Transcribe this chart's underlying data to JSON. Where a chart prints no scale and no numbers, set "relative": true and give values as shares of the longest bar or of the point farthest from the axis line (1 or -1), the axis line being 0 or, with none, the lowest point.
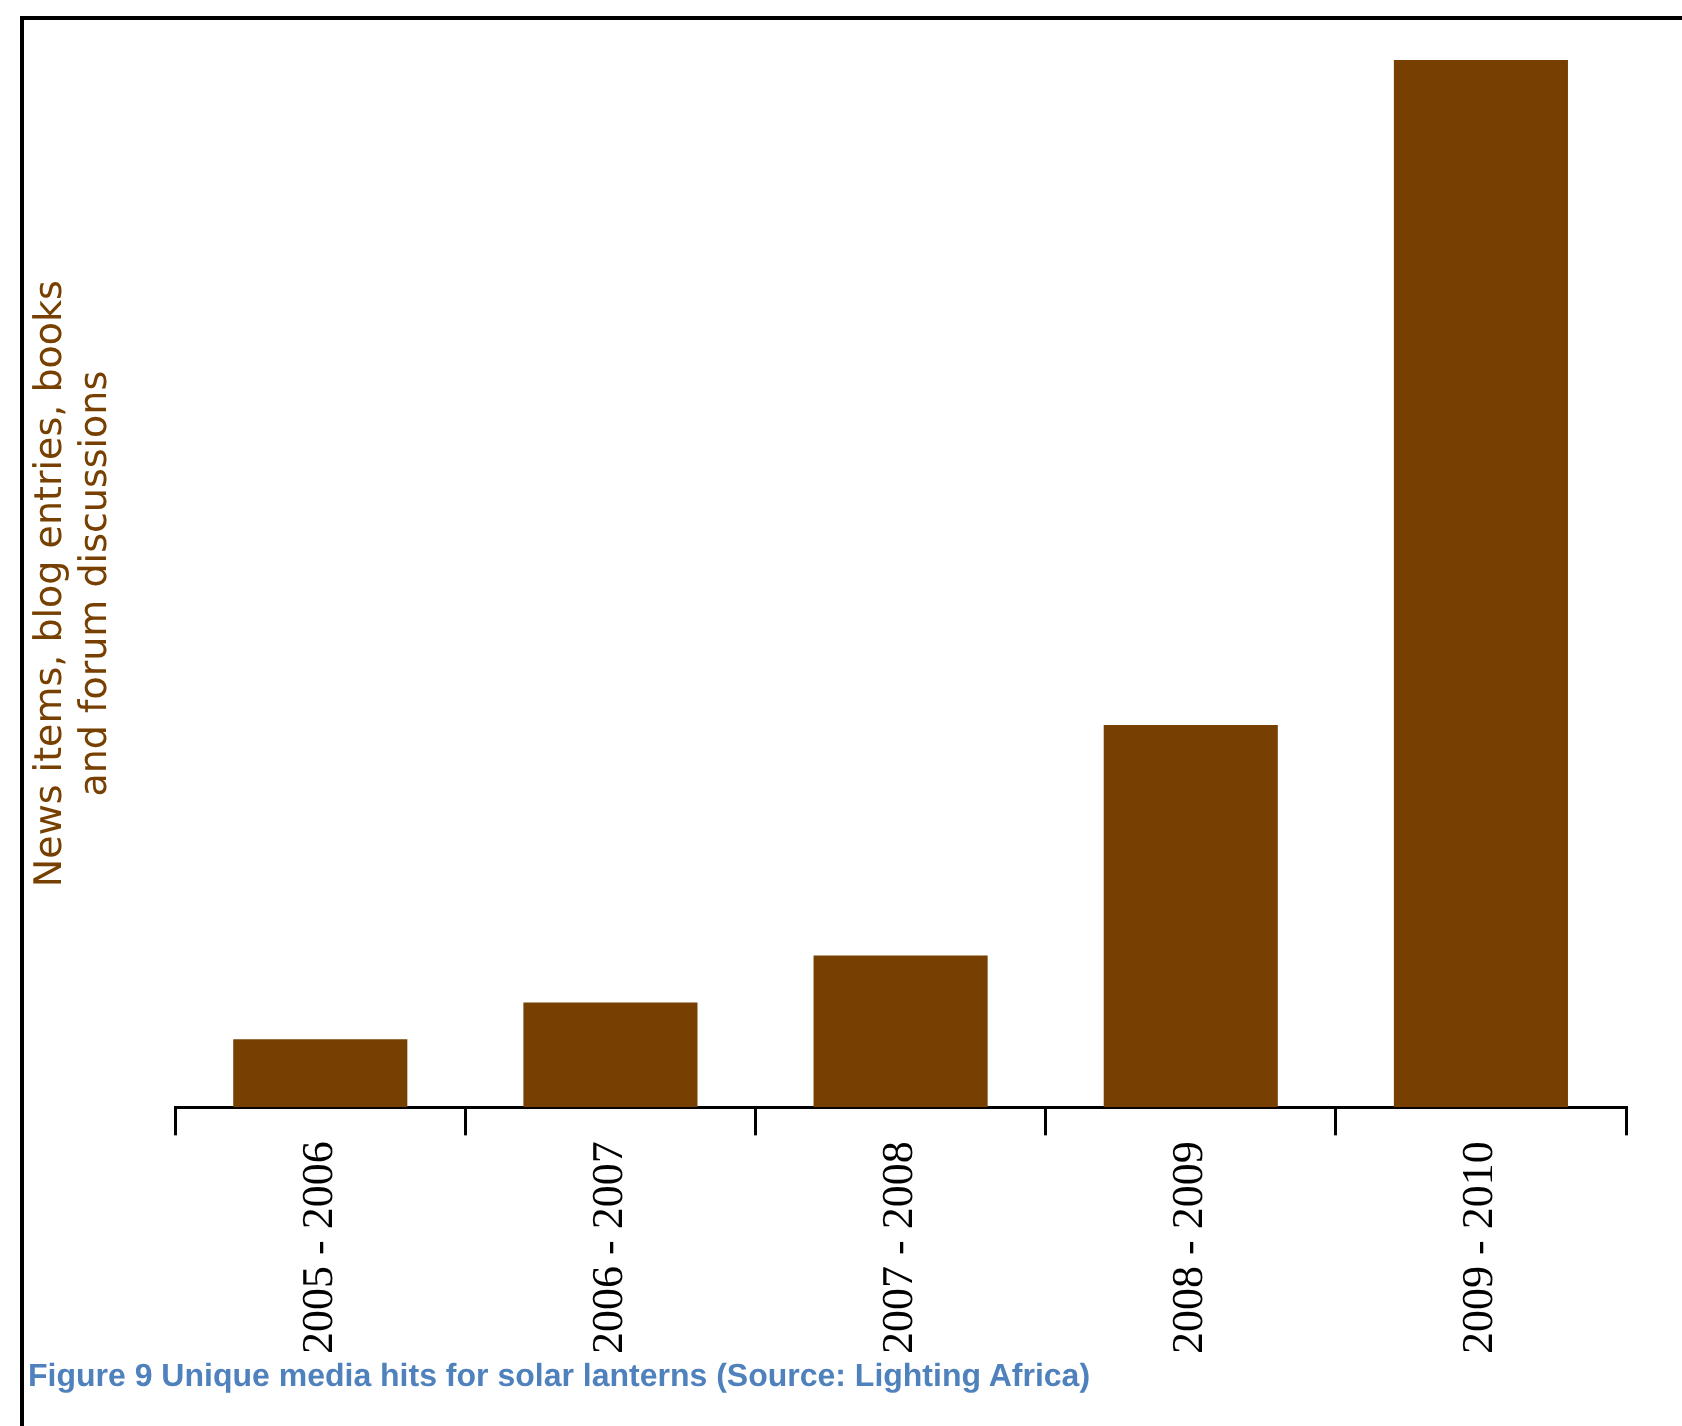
{
  "chart_data": {
    "type": "bar",
    "relative": true,
    "ylabel": "News items, blog entries, books\nand forum discussions",
    "categories": [
      "2005 - 2006",
      "2006 - 2007",
      "2007 - 2008",
      "2008 - 2009",
      "2009 - 2010"
    ],
    "values": [
      0.065,
      0.1,
      0.145,
      0.365,
      1
    ],
    "color": "#774000",
    "annotations": [
      "Figure 9 Unique media hits for solar lanterns (Source: Lighting Africa)"
    ]
  }
}
